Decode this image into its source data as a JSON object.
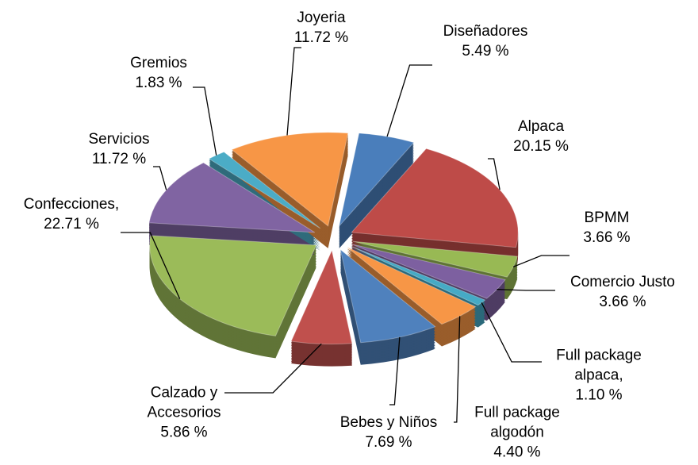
{
  "chart_data": {
    "type": "pie",
    "categories": [
      "Diseñadores",
      "Alpaca",
      "BPMM",
      "Comercio Justo",
      "Full package alpaca,",
      "Full package algodón",
      "Bebes y Niños",
      "Calzado y Accesorios",
      "Confecciones,",
      "Servicios",
      "Gremios",
      "Joyeria"
    ],
    "values": [
      5.49,
      20.15,
      3.66,
      3.66,
      1.1,
      4.4,
      7.69,
      5.86,
      22.71,
      11.72,
      1.83,
      11.72
    ],
    "value_labels": [
      "5.49 %",
      "20.15 %",
      "3.66 %",
      "3.66 %",
      "1.10 %",
      "4.40 %",
      "7.69 %",
      "5.86 %",
      "22.71 %",
      "11.72 %",
      "1.83 %",
      "11.72 %"
    ],
    "colors": [
      "#4a7ebb",
      "#be4b48",
      "#98b954",
      "#7d60a0",
      "#46aac5",
      "#f79646",
      "#4f81bd",
      "#c0504d",
      "#9bbb59",
      "#8064a2",
      "#4bacc6",
      "#f79646"
    ]
  }
}
